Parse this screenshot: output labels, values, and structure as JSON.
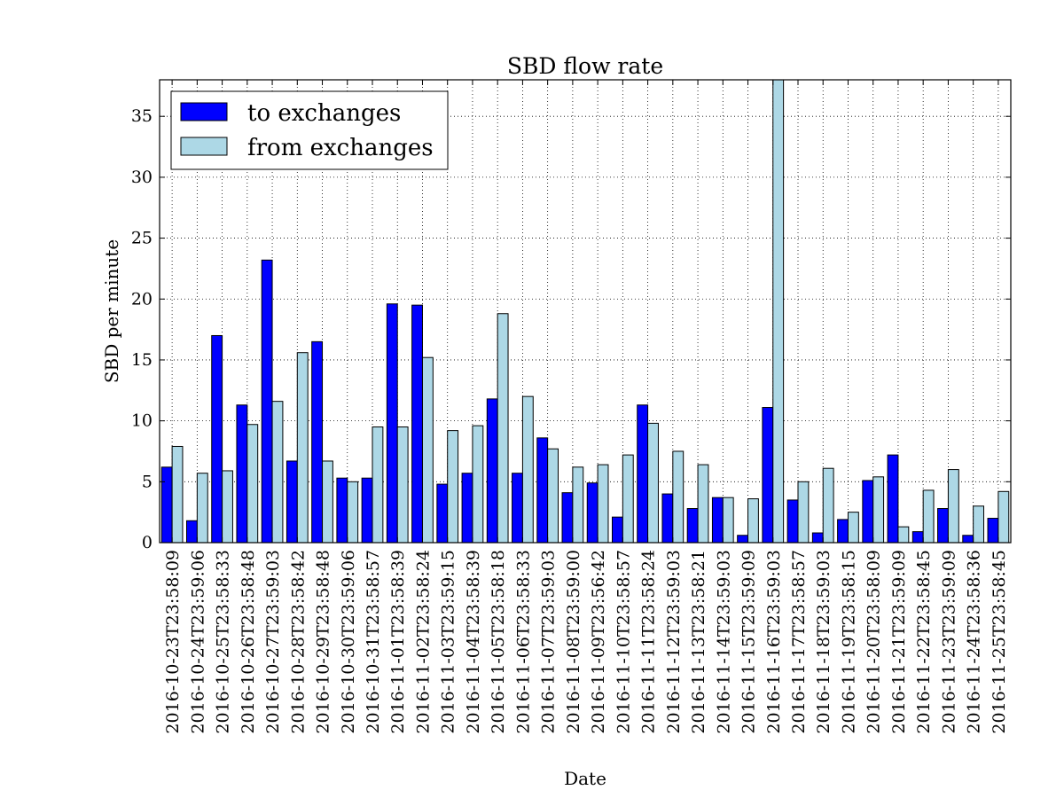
{
  "chart_data": {
    "type": "bar",
    "title": "SBD flow rate",
    "xlabel": "Date",
    "ylabel": "SBD per minute",
    "ylim": [
      0,
      38
    ],
    "yticks": [
      "0",
      "5",
      "10",
      "15",
      "20",
      "25",
      "30",
      "35"
    ],
    "grid": true,
    "legend_position": "upper-left",
    "categories": [
      "2016-10-23T23:58:09",
      "2016-10-24T23:59:06",
      "2016-10-25T23:58:33",
      "2016-10-26T23:58:48",
      "2016-10-27T23:59:03",
      "2016-10-28T23:58:42",
      "2016-10-29T23:58:48",
      "2016-10-30T23:59:06",
      "2016-10-31T23:58:57",
      "2016-11-01T23:58:39",
      "2016-11-02T23:58:24",
      "2016-11-03T23:59:15",
      "2016-11-04T23:58:39",
      "2016-11-05T23:58:18",
      "2016-11-06T23:58:33",
      "2016-11-07T23:59:03",
      "2016-11-08T23:59:00",
      "2016-11-09T23:56:42",
      "2016-11-10T23:58:57",
      "2016-11-11T23:58:24",
      "2016-11-12T23:59:03",
      "2016-11-13T23:58:21",
      "2016-11-14T23:59:03",
      "2016-11-15T23:59:09",
      "2016-11-16T23:59:03",
      "2016-11-17T23:58:57",
      "2016-11-18T23:59:03",
      "2016-11-19T23:58:15",
      "2016-11-20T23:58:09",
      "2016-11-21T23:59:09",
      "2016-11-22T23:58:45",
      "2016-11-23T23:59:09",
      "2016-11-24T23:58:36",
      "2016-11-25T23:58:45"
    ],
    "series": [
      {
        "name": "to exchanges",
        "color": "#0000ff",
        "values": [
          6.2,
          1.8,
          17.0,
          11.3,
          23.2,
          6.7,
          16.5,
          5.3,
          5.3,
          19.6,
          19.5,
          4.8,
          5.7,
          11.8,
          5.7,
          8.6,
          4.1,
          4.9,
          2.1,
          11.3,
          4.0,
          2.8,
          3.7,
          0.6,
          11.1,
          3.5,
          0.8,
          1.9,
          5.1,
          7.2,
          0.9,
          2.8,
          0.6,
          2.0
        ]
      },
      {
        "name": "from exchanges",
        "color": "#add8e6",
        "values": [
          7.9,
          5.7,
          5.9,
          9.7,
          11.6,
          15.6,
          6.7,
          5.0,
          9.5,
          9.5,
          15.2,
          9.2,
          9.6,
          18.8,
          12.0,
          7.7,
          6.2,
          6.4,
          7.2,
          9.8,
          7.5,
          6.4,
          3.7,
          3.6,
          38.0,
          5.0,
          6.1,
          2.5,
          5.4,
          1.3,
          4.3,
          6.0,
          3.0,
          4.2
        ]
      }
    ]
  }
}
